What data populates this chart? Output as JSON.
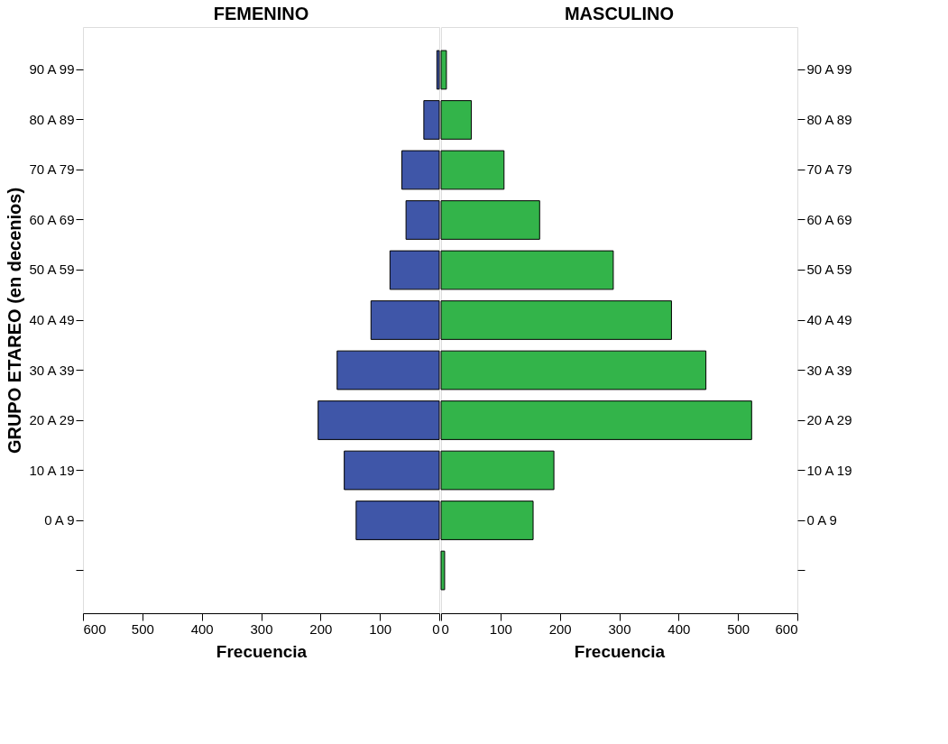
{
  "chart_data": [
    {
      "type": "bar",
      "orientation": "horizontal",
      "title": "FEMENINO",
      "xlabel": "Frecuencia",
      "ylabel": "GRUPO ETAREO (en decenios)",
      "categories": [
        "90 A 99",
        "80 A 89",
        "70 A 79",
        "60 A 69",
        "50 A 59",
        "40 A 49",
        "30 A 39",
        "20 A 29",
        "10 A 19",
        "0 A 9",
        null
      ],
      "series": [
        {
          "color": "#3f56a8",
          "values": [
            4,
            26,
            63,
            56,
            83,
            115,
            172,
            204,
            160,
            140,
            null
          ]
        }
      ],
      "xlim": [
        600,
        0
      ],
      "xticks": [
        600,
        500,
        400,
        300,
        200,
        100,
        0
      ],
      "grid": false
    },
    {
      "type": "bar",
      "orientation": "horizontal",
      "title": "MASCULINO",
      "xlabel": "Frecuencia",
      "categories": [
        "90 A 99",
        "80 A 89",
        "70 A 79",
        "60 A 69",
        "50 A 59",
        "40 A 49",
        "30 A 39",
        "20 A 29",
        "10 A 19",
        "0 A 9",
        null
      ],
      "series": [
        {
          "color": "#33b44a",
          "values": [
            9,
            51,
            106,
            166,
            290,
            388,
            446,
            523,
            190,
            155,
            6
          ]
        }
      ],
      "xlim": [
        0,
        600
      ],
      "xticks": [
        0,
        100,
        200,
        300,
        400,
        500,
        600
      ],
      "grid": false
    }
  ]
}
